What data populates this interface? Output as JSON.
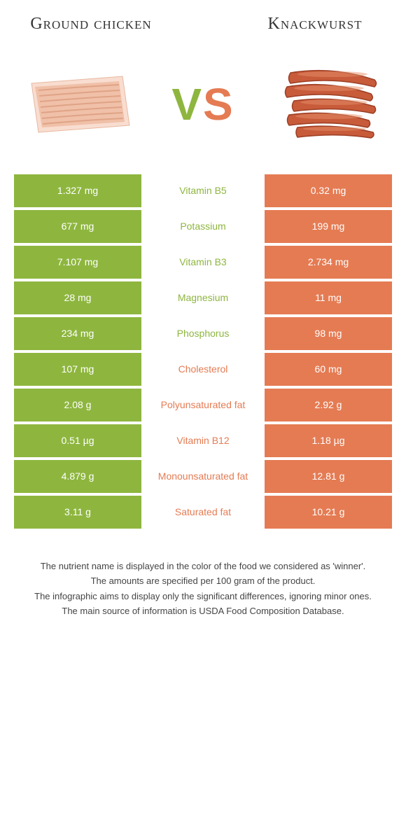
{
  "colors": {
    "green": "#8eb63f",
    "orange": "#e57b53",
    "background": "#ffffff",
    "text": "#333333"
  },
  "header": {
    "left_title": "Ground chicken",
    "right_title": "Knackwurst",
    "vs_v": "V",
    "vs_s": "S"
  },
  "table": {
    "rows": [
      {
        "left": "1.327 mg",
        "nutrient": "Vitamin B5",
        "right": "0.32 mg",
        "winner": "left"
      },
      {
        "left": "677 mg",
        "nutrient": "Potassium",
        "right": "199 mg",
        "winner": "left"
      },
      {
        "left": "7.107 mg",
        "nutrient": "Vitamin B3",
        "right": "2.734 mg",
        "winner": "left"
      },
      {
        "left": "28 mg",
        "nutrient": "Magnesium",
        "right": "11 mg",
        "winner": "left"
      },
      {
        "left": "234 mg",
        "nutrient": "Phosphorus",
        "right": "98 mg",
        "winner": "left"
      },
      {
        "left": "107 mg",
        "nutrient": "Cholesterol",
        "right": "60 mg",
        "winner": "right"
      },
      {
        "left": "2.08 g",
        "nutrient": "Polyunsaturated fat",
        "right": "2.92 g",
        "winner": "right"
      },
      {
        "left": "0.51 µg",
        "nutrient": "Vitamin B12",
        "right": "1.18 µg",
        "winner": "right"
      },
      {
        "left": "4.879 g",
        "nutrient": "Monounsaturated fat",
        "right": "12.81 g",
        "winner": "right"
      },
      {
        "left": "3.11 g",
        "nutrient": "Saturated fat",
        "right": "10.21 g",
        "winner": "right"
      }
    ]
  },
  "notes": {
    "line1": "The nutrient name is displayed in the color of the food we considered as 'winner'.",
    "line2": "The amounts are specified per 100 gram of the product.",
    "line3": "The infographic aims to display only the significant differences, ignoring minor ones.",
    "line4": "The main source of information is USDA Food Composition Database."
  }
}
